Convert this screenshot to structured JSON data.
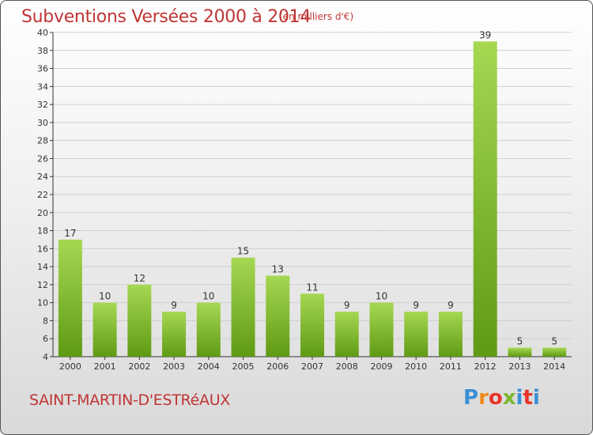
{
  "header": {
    "title": "Subventions Versées 2000 à 2014",
    "unit": "(en milliers d'€)"
  },
  "footer": {
    "commune": "SAINT-MARTIN-D'ESTRéAUX",
    "logo": "Proxiti"
  },
  "colors": {
    "title": "#c03535",
    "bar_light": "#9ed04a",
    "bar_dark": "#5f9a14",
    "grid": "#cfcfcf",
    "logo_letters": [
      "#3a8fd6",
      "#f08a1c",
      "#e8352a",
      "#7ab62c",
      "#3a8fd6",
      "#e8352a",
      "#3a8fd6"
    ]
  },
  "chart_data": {
    "type": "bar",
    "categories": [
      "2000",
      "2001",
      "2002",
      "2003",
      "2004",
      "2005",
      "2006",
      "2007",
      "2008",
      "2009",
      "2010",
      "2011",
      "2012",
      "2013",
      "2014"
    ],
    "values": [
      17,
      10,
      12,
      9,
      10,
      15,
      13,
      11,
      9,
      10,
      9,
      9,
      39,
      5,
      5
    ],
    "yticks": [
      4,
      6,
      8,
      10,
      12,
      14,
      16,
      18,
      20,
      22,
      24,
      26,
      28,
      30,
      32,
      34,
      36,
      38,
      40
    ],
    "ylim": [
      4,
      40
    ],
    "title": "Subventions Versées 2000 à 2014",
    "subtitle": "(en milliers d'€)",
    "grid": true
  }
}
